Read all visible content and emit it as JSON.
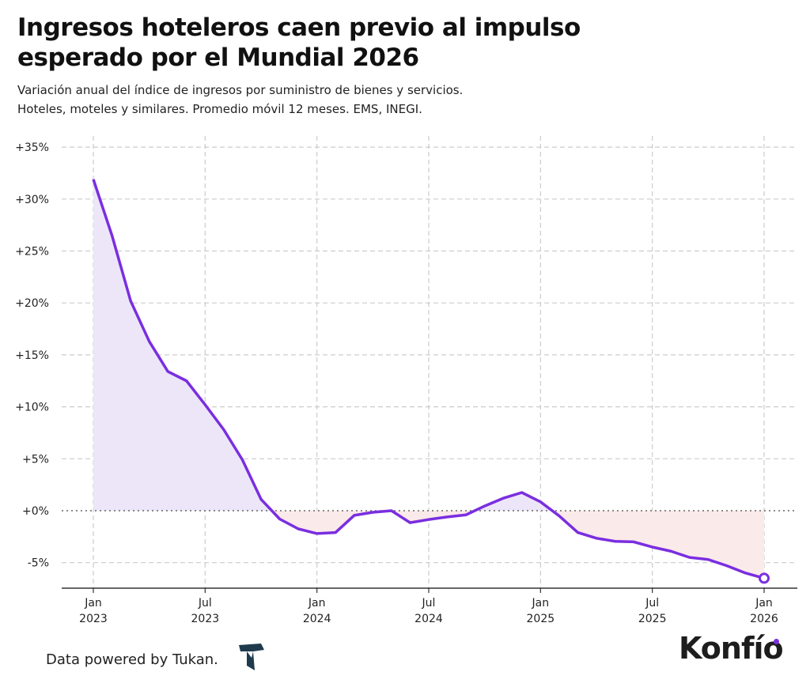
{
  "title_line1": "Ingresos hoteleros caen previo al impulso",
  "title_line2": "esperado por el Mundial 2026",
  "subtitle_line1": "Variación anual del índice de ingresos por suministro de bienes y servicios.",
  "subtitle_line2": "Hoteles, moteles y similares. Promedio móvil 12 meses. EMS, INEGI.",
  "footer": "Data powered by Tukan.",
  "brand": "Konfío",
  "colors": {
    "line": "#7a2ee0",
    "positive_fill": "#ede6f8",
    "negative_fill": "#fbeaea",
    "grid": "#cccccc"
  },
  "chart_data": {
    "type": "area",
    "title": "Ingresos hoteleros caen previo al impulso esperado por el Mundial 2026",
    "xlabel": "",
    "ylabel": "",
    "ylim": [
      -7.5,
      35
    ],
    "grid": true,
    "y_ticks": [
      -5,
      0,
      5,
      10,
      15,
      20,
      25,
      30,
      35
    ],
    "y_tick_labels": [
      "-5%",
      "+0%",
      "+5%",
      "+10%",
      "+15%",
      "+20%",
      "+25%",
      "+30%",
      "+35%"
    ],
    "x_ticks": [
      {
        "date": "2023-01",
        "label1": "Jan",
        "label2": "2023"
      },
      {
        "date": "2023-07",
        "label1": "Jul",
        "label2": "2023"
      },
      {
        "date": "2024-01",
        "label1": "Jan",
        "label2": "2024"
      },
      {
        "date": "2024-07",
        "label1": "Jul",
        "label2": "2024"
      },
      {
        "date": "2025-01",
        "label1": "Jan",
        "label2": "2025"
      },
      {
        "date": "2025-07",
        "label1": "Jul",
        "label2": "2025"
      },
      {
        "date": "2026-01",
        "label1": "Jan",
        "label2": "2026"
      }
    ],
    "x": [
      "2023-01",
      "2023-02",
      "2023-03",
      "2023-04",
      "2023-05",
      "2023-06",
      "2023-07",
      "2023-08",
      "2023-09",
      "2023-10",
      "2023-11",
      "2023-12",
      "2024-01",
      "2024-02",
      "2024-03",
      "2024-04",
      "2024-05",
      "2024-06",
      "2024-07",
      "2024-08",
      "2024-09",
      "2024-10",
      "2024-11",
      "2024-12",
      "2025-01",
      "2025-02",
      "2025-03",
      "2025-04",
      "2025-05",
      "2025-06",
      "2025-07",
      "2025-08",
      "2025-09",
      "2025-10",
      "2025-11",
      "2025-12",
      "2026-01"
    ],
    "values": [
      31.9,
      26.5,
      20.2,
      16.3,
      13.4,
      12.5,
      10.2,
      7.8,
      4.9,
      1.1,
      -0.8,
      -1.75,
      -2.2,
      -2.1,
      -0.45,
      -0.15,
      0.0,
      -1.15,
      -0.85,
      -0.6,
      -0.4,
      0.45,
      1.2,
      1.75,
      0.85,
      -0.5,
      -2.1,
      -2.65,
      -2.95,
      -3.0,
      -3.5,
      -3.9,
      -4.5,
      -4.7,
      -5.3,
      -6.0,
      -6.5
    ]
  }
}
